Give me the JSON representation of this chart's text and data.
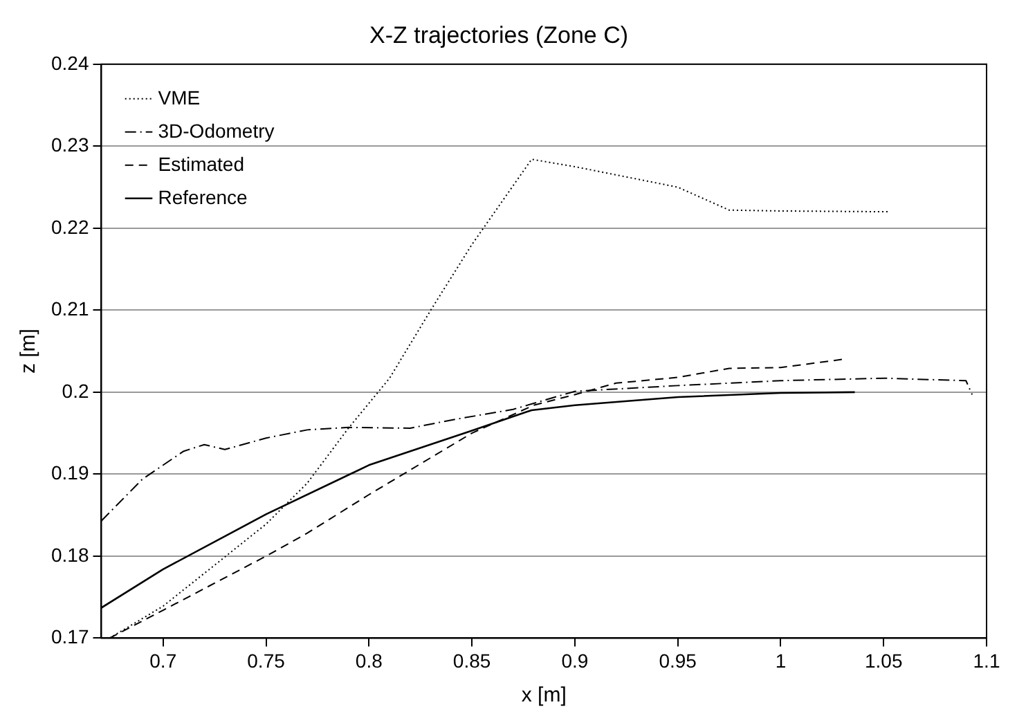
{
  "chart_data": {
    "type": "line",
    "title": "X-Z trajectories (Zone C)",
    "xlabel": "x [m]",
    "ylabel": "z [m]",
    "xlim": [
      0.67,
      1.1
    ],
    "ylim": [
      0.17,
      0.24
    ],
    "xticks": [
      0.7,
      0.75,
      0.8,
      0.85,
      0.9,
      0.95,
      1,
      1.05,
      1.1
    ],
    "yticks": [
      0.17,
      0.18,
      0.19,
      0.2,
      0.21,
      0.22,
      0.23,
      0.24
    ],
    "grid": "y",
    "legend": "top left",
    "marker": "none",
    "series": [
      {
        "name": "VME",
        "color": "#000000",
        "line_style": "dotted",
        "x": [
          0.674,
          0.7,
          0.75,
          0.77,
          0.79,
          0.81,
          0.83,
          0.85,
          0.879,
          0.9,
          0.95,
          0.975,
          1.0,
          1.053
        ],
        "values": [
          0.17,
          0.1739,
          0.1839,
          0.1889,
          0.1956,
          0.2017,
          0.21,
          0.218,
          0.2284,
          0.2275,
          0.225,
          0.2222,
          0.2221,
          0.222
        ]
      },
      {
        "name": "3D-Odometry",
        "color": "#000000",
        "line_style": "dashdot",
        "x": [
          0.67,
          0.69,
          0.71,
          0.72,
          0.73,
          0.75,
          0.77,
          0.79,
          0.82,
          0.84,
          0.87,
          0.9,
          0.95,
          1.0,
          1.05,
          1.09,
          1.093
        ],
        "values": [
          0.1843,
          0.1894,
          0.1928,
          0.1936,
          0.193,
          0.1944,
          0.1954,
          0.1957,
          0.1956,
          0.1966,
          0.1979,
          0.2001,
          0.2008,
          0.2014,
          0.2017,
          0.2014,
          0.1997
        ]
      },
      {
        "name": "Estimated",
        "color": "#000000",
        "line_style": "dashed",
        "x": [
          0.674,
          0.7,
          0.75,
          0.77,
          0.8,
          0.85,
          0.88,
          0.9,
          0.92,
          0.95,
          0.975,
          1.0,
          1.03
        ],
        "values": [
          0.17,
          0.1734,
          0.18,
          0.1828,
          0.1875,
          0.195,
          0.1984,
          0.1997,
          0.2011,
          0.2018,
          0.2029,
          0.203,
          0.204
        ]
      },
      {
        "name": "Reference",
        "color": "#000000",
        "line_style": "solid",
        "x": [
          0.67,
          0.7,
          0.75,
          0.8,
          0.85,
          0.879,
          0.9,
          0.95,
          1.0,
          1.036
        ],
        "values": [
          0.1737,
          0.1784,
          0.1851,
          0.1911,
          0.1953,
          0.1978,
          0.1984,
          0.1994,
          0.1999,
          0.2
        ]
      }
    ]
  }
}
